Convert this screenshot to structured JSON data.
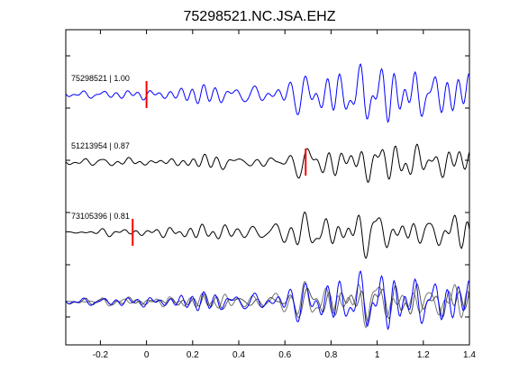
{
  "chart_data": {
    "type": "line",
    "title": "75298521.NC.JSA.EHZ",
    "xlabel": "",
    "ylabel": "",
    "xlim": [
      -0.35,
      1.4
    ],
    "x_ticks": [
      -0.2,
      0,
      0.2,
      0.4,
      0.6,
      0.8,
      1,
      1.2,
      1.4
    ],
    "x_tick_labels": [
      "-0.2",
      "0",
      "0.2",
      "0.4",
      "0.6",
      "0.8",
      "1",
      "1.2",
      "1.4"
    ],
    "grid": false,
    "colors": {
      "reference": "#0000ff",
      "comparison": "#000000",
      "overlay_gray": "#777777",
      "pick_marker": "#ff0000"
    },
    "traces": [
      {
        "label": "75298521 | 1.00",
        "pick_time": 0.0,
        "color": "#0000ff"
      },
      {
        "label": "51213954 | 0.87",
        "pick_time": 0.69,
        "color": "#000000"
      },
      {
        "label": "73105396 | 0.81",
        "pick_time": -0.06,
        "color": "#000000"
      }
    ]
  }
}
